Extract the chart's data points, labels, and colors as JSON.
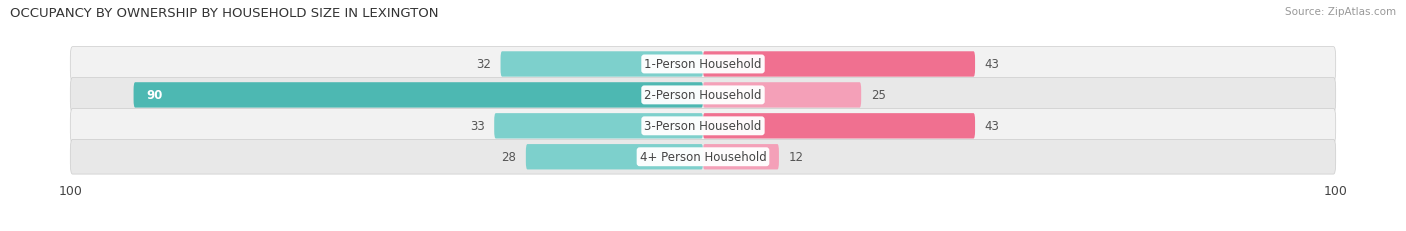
{
  "title": "OCCUPANCY BY OWNERSHIP BY HOUSEHOLD SIZE IN LEXINGTON",
  "source": "Source: ZipAtlas.com",
  "categories": [
    "1-Person Household",
    "2-Person Household",
    "3-Person Household",
    "4+ Person Household"
  ],
  "owner_values": [
    32,
    90,
    33,
    28
  ],
  "renter_values": [
    43,
    25,
    43,
    12
  ],
  "owner_color_strong": "#4db8b2",
  "owner_color_light": "#7dd0cc",
  "renter_color_strong": "#f07090",
  "renter_color_light": "#f4a0b8",
  "row_bg_light": "#f2f2f2",
  "row_bg_dark": "#e8e8e8",
  "axis_max": 100,
  "label_fontsize": 8.5,
  "title_fontsize": 9.5,
  "source_fontsize": 7.5,
  "legend_fontsize": 8.5
}
